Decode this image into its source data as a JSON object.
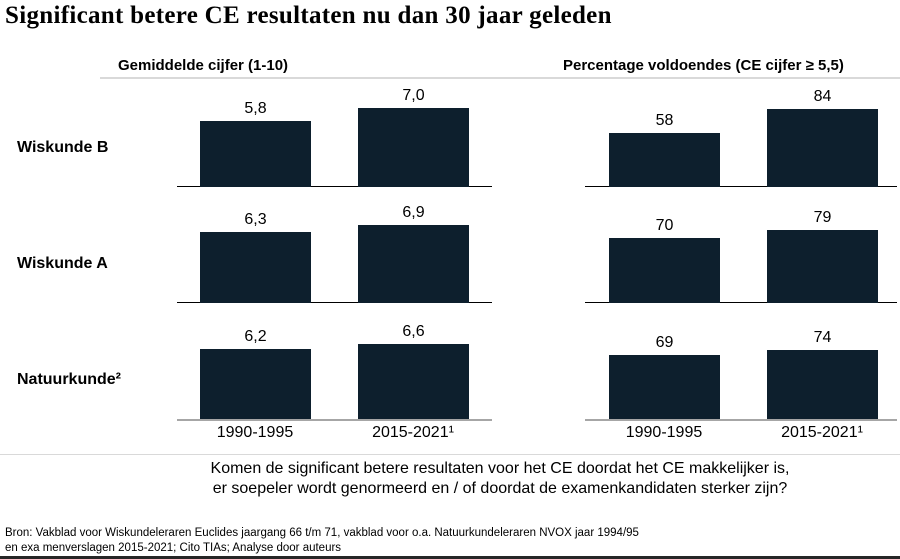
{
  "title": "Significant betere CE resultaten nu dan 30 jaar geleden",
  "colors": {
    "bar": "#0d1f2d",
    "axis": "#000000",
    "axis_bottom": "#a6a6a6",
    "divider": "#d9d9d9",
    "footer_rule": "#262626"
  },
  "chart_data": [
    {
      "type": "bar",
      "title": "Gemiddelde cijfer (1-10)",
      "categories": [
        "1990-1995",
        "2015-2021¹"
      ],
      "ylim": [
        0,
        10
      ],
      "grid": false,
      "rows": [
        {
          "label": "Wiskunde B",
          "values": [
            5.8,
            7.0
          ],
          "display": [
            "5,8",
            "7,0"
          ]
        },
        {
          "label": "Wiskunde A",
          "values": [
            6.3,
            6.9
          ],
          "display": [
            "6,3",
            "6,9"
          ]
        },
        {
          "label": "Natuurkunde²",
          "values": [
            6.2,
            6.6
          ],
          "display": [
            "6,2",
            "6,6"
          ]
        }
      ]
    },
    {
      "type": "bar",
      "title": "Percentage voldoendes (CE cijfer ≥ 5,5)",
      "categories": [
        "1990-1995",
        "2015-2021¹"
      ],
      "ylim": [
        0,
        100
      ],
      "grid": false,
      "rows": [
        {
          "label": "Wiskunde B",
          "values": [
            58,
            84
          ],
          "display": [
            "58",
            "84"
          ]
        },
        {
          "label": "Wiskunde A",
          "values": [
            70,
            79
          ],
          "display": [
            "70",
            "79"
          ]
        },
        {
          "label": "Natuurkunde²",
          "values": [
            69,
            74
          ],
          "display": [
            "69",
            "74"
          ]
        }
      ]
    }
  ],
  "question": {
    "line1": "Komen de significant betere resultaten voor het CE doordat het CE makkelijker is,",
    "line2": "er soepeler wordt genormeerd en / of doordat de examenkandidaten sterker zijn?"
  },
  "source": {
    "line1": "Bron: Vakblad voor Wiskundeleraren Euclides jaargang 66 t/m 71, vakblad voor o.a. Natuurkundeleraren NVOX jaar 1994/95",
    "line2": "en exa menverslagen 2015-2021;  Cito TIAs; Analyse door auteurs"
  }
}
